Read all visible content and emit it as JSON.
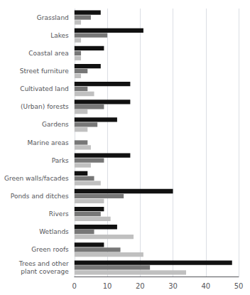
{
  "chart_data": {
    "type": "bar",
    "orientation": "horizontal",
    "categories": [
      "Grassland",
      "Lakes",
      "Coastal area",
      "Street furniture",
      "Cultivated land",
      "(Urban) forests",
      "Gardens",
      "Marine areas",
      "Parks",
      "Green walls/facades",
      "Ponds and ditches",
      "Rivers",
      "Wetlands",
      "Green roofs",
      "Trees and other\nplant coverage"
    ],
    "series": [
      {
        "color": "#111111",
        "values": [
          8,
          21,
          9,
          8,
          17,
          17,
          13,
          0,
          17,
          4,
          30,
          9,
          13,
          9,
          48
        ]
      },
      {
        "color": "#777777",
        "values": [
          5,
          10,
          2,
          4,
          4,
          9,
          7,
          4,
          9,
          6,
          15,
          8,
          6,
          14,
          23
        ]
      },
      {
        "color": "#c0c0c0",
        "values": [
          2,
          2,
          2,
          2,
          6,
          4,
          4,
          5,
          5,
          8,
          9,
          11,
          18,
          21,
          34
        ]
      }
    ],
    "xlim": [
      0,
      50
    ],
    "xticks": [
      0,
      10,
      20,
      30,
      40,
      50
    ],
    "grid": true
  }
}
